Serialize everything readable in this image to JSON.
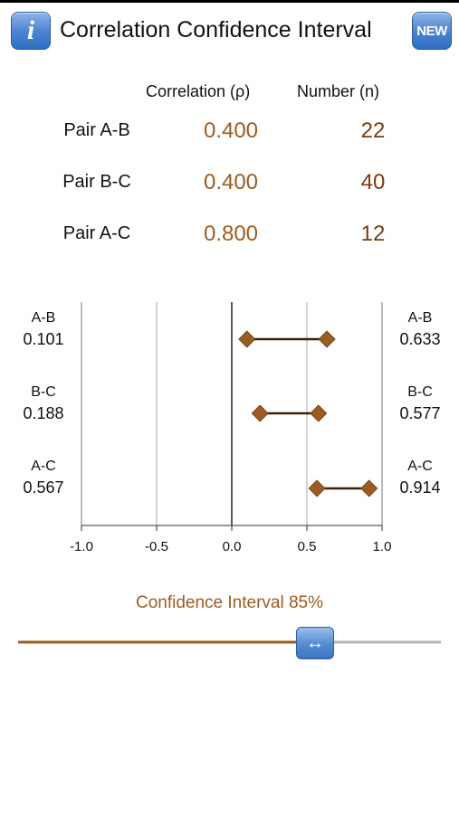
{
  "header": {
    "title": "Correlation Confidence Interval",
    "info_label": "i",
    "new_label": "NEW"
  },
  "table": {
    "col_correlation": "Correlation (ρ)",
    "col_number": "Number (n)",
    "rows": [
      {
        "label": "Pair A-B",
        "correlation": "0.400",
        "n": "22"
      },
      {
        "label": "Pair B-C",
        "correlation": "0.400",
        "n": "40"
      },
      {
        "label": "Pair A-C",
        "correlation": "0.800",
        "n": "12"
      }
    ]
  },
  "chart_data": {
    "type": "scatter",
    "xlim": [
      -1.0,
      1.0
    ],
    "xticks": [
      "-1.0",
      "-0.5",
      "0.0",
      "0.5",
      "1.0"
    ],
    "intervals": [
      {
        "name": "A-B",
        "lower": 0.101,
        "upper": 0.633,
        "lower_label": "0.101",
        "upper_label": "0.633"
      },
      {
        "name": "B-C",
        "lower": 0.188,
        "upper": 0.577,
        "lower_label": "0.188",
        "upper_label": "0.577"
      },
      {
        "name": "A-C",
        "lower": 0.567,
        "upper": 0.914,
        "lower_label": "0.567",
        "upper_label": "0.914"
      }
    ],
    "colors": {
      "marker": "#9b5c22",
      "line": "#3a1e0c",
      "grid": "#aaaaaa",
      "zero": "#000000"
    }
  },
  "slider": {
    "caption": "Confidence Interval 85%",
    "value_percent": 85,
    "thumb_icon": "double-arrow-icon",
    "thumb_glyph": "↔",
    "colors": {
      "filled": "#9b5c22",
      "empty": "#b5b5b5"
    }
  }
}
